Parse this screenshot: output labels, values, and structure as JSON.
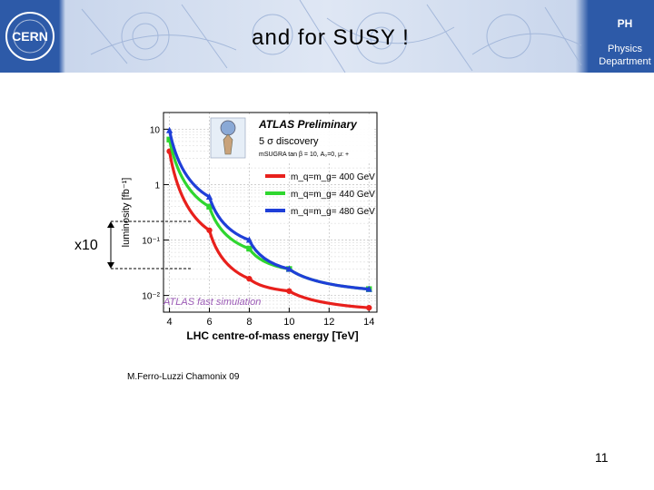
{
  "header": {
    "title": "and for SUSY !",
    "logo_text": "CERN",
    "dept": {
      "abbr": "PH",
      "line1": "Physics",
      "line2": "Department"
    },
    "banner_color": "#2b57a5"
  },
  "annotation": {
    "factor": "x10"
  },
  "credit": "M.Ferro-Luzzi Chamonix 09",
  "page_number": "11",
  "chart_data": {
    "type": "line",
    "title": "ATLAS Preliminary",
    "subtitle": "5 σ discovery",
    "model_label": "mSUGRA tan β = 10, A₀=0, μ: +",
    "watermark": "ATLAS fast simulation",
    "xlabel": "LHC centre-of-mass energy [TeV]",
    "ylabel": "luminosity [fb⁻¹]",
    "x_scale": "linear",
    "y_scale": "log",
    "xlim": [
      3.7,
      14.4
    ],
    "ylim": [
      0.005,
      20
    ],
    "x_ticks": [
      4,
      6,
      8,
      10,
      12,
      14
    ],
    "x_tick_labels": [
      "4",
      "6",
      "8",
      "10",
      "12",
      "14"
    ],
    "y_ticks": [
      0.01,
      0.1,
      1,
      10
    ],
    "y_tick_labels": [
      "10⁻²",
      "10⁻¹",
      "1",
      "10"
    ],
    "grid": true,
    "legend_position": "top-right",
    "series": [
      {
        "name": "m_q=m_g= 400 GeV",
        "color": "#e8201c",
        "x": [
          4,
          6,
          8,
          10,
          14
        ],
        "y": [
          4.0,
          0.15,
          0.02,
          0.012,
          0.006
        ]
      },
      {
        "name": "m_q=m_g= 440 GeV",
        "color": "#2fd62f",
        "x": [
          4,
          6,
          8,
          10,
          14
        ],
        "y": [
          6.5,
          0.4,
          0.07,
          0.03,
          0.013
        ]
      },
      {
        "name": "m_q=m_g= 480 GeV",
        "color": "#1f3fd8",
        "x": [
          4,
          6,
          8,
          10,
          14
        ],
        "y": [
          9.5,
          0.6,
          0.1,
          0.03,
          0.013
        ]
      }
    ]
  }
}
